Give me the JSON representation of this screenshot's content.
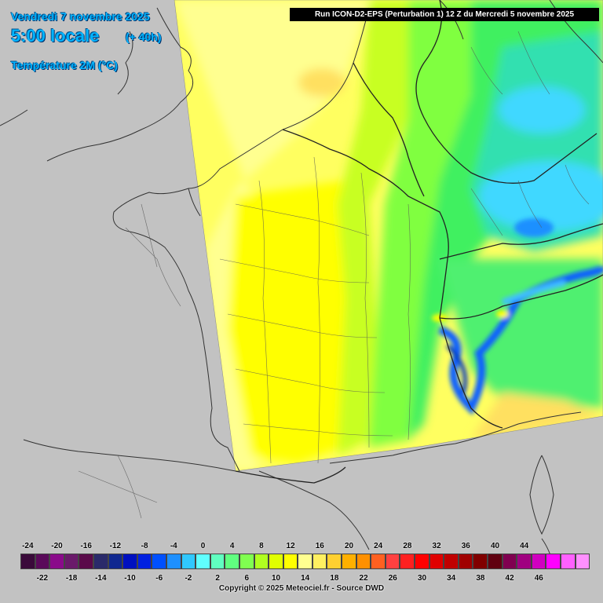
{
  "header": {
    "date": "Vendredi 7 novembre 2025",
    "time": "5:00 locale",
    "lead": "(+ 40h)",
    "parameter": "Température 2M (°C)",
    "run": "Run ICON-D2-EPS (Perturbation 1) 12 Z du Mercredi 5 novembre 2025"
  },
  "legend": {
    "top_labels": [
      "-24",
      "-20",
      "-16",
      "-12",
      "-8",
      "-4",
      "0",
      "4",
      "8",
      "12",
      "16",
      "20",
      "24",
      "28",
      "32",
      "36",
      "40",
      "44"
    ],
    "bottom_labels": [
      "-22",
      "-18",
      "-14",
      "-10",
      "-6",
      "-2",
      "2",
      "6",
      "10",
      "14",
      "18",
      "22",
      "26",
      "30",
      "34",
      "38",
      "42",
      "46"
    ],
    "colors": [
      "#3a0a3a",
      "#5a0a5a",
      "#8a0a8a",
      "#6a1a6a",
      "#5a0a4a",
      "#2a2a6a",
      "#102890",
      "#0010c0",
      "#0020e0",
      "#0050ff",
      "#1e90ff",
      "#30c8ff",
      "#60ffff",
      "#60ffc0",
      "#60ff80",
      "#80ff50",
      "#b0ff20",
      "#e0ff00",
      "#ffff00",
      "#ffff90",
      "#fff060",
      "#ffd030",
      "#ffb000",
      "#ff9000",
      "#ff6020",
      "#ff4040",
      "#ff2020",
      "#ff0000",
      "#e00000",
      "#c00000",
      "#a00000",
      "#800000",
      "#600010",
      "#800050",
      "#a00080",
      "#d000c0",
      "#ff00ff",
      "#ff60ff",
      "#ff90ff"
    ]
  },
  "copyright": "Copyright © 2025 Meteociel.fr - Source DWD",
  "colors": {
    "land": "#c2c2c2",
    "header_text": "#00b4ff",
    "temp_6": "#ffff50",
    "temp_4": "#ffff00",
    "temp_2": "#aaff30",
    "temp_0": "#40f060",
    "temp_m2": "#30e0a0",
    "temp_m4": "#40c0ff",
    "temp_m8": "#1060ff"
  }
}
